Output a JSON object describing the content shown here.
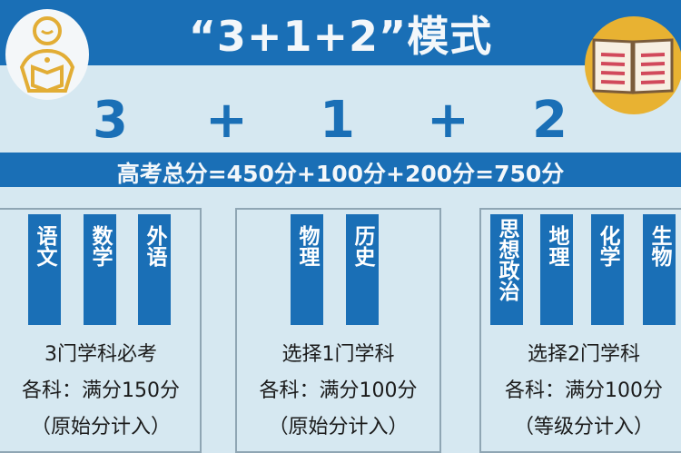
{
  "title": "“3+1+2”模式",
  "formula": {
    "n1": "3",
    "plus1": "+",
    "n2": "1",
    "plus2": "+",
    "n3": "2"
  },
  "total_score": "高考总分=450分+100分+200分=750分",
  "icons": {
    "left": "student-reading-icon",
    "right": "open-book-icon"
  },
  "colors": {
    "primary": "#1a6fb6",
    "background": "#d6e8f1",
    "book_circle": "#e8b232"
  },
  "groups": [
    {
      "subjects": [
        "语文",
        "数学",
        "外语"
      ],
      "lines": [
        "3门学科必考",
        "各科：满分150分",
        "（原始分计入）"
      ]
    },
    {
      "subjects": [
        "物理",
        "历史"
      ],
      "lines": [
        "选择1门学科",
        "各科：满分100分",
        "（原始分计入）"
      ]
    },
    {
      "subjects": [
        "思想政治",
        "地理",
        "化学",
        "生物"
      ],
      "lines": [
        "选择2门学科",
        "各科：满分100分",
        "（等级分计入）"
      ]
    }
  ]
}
